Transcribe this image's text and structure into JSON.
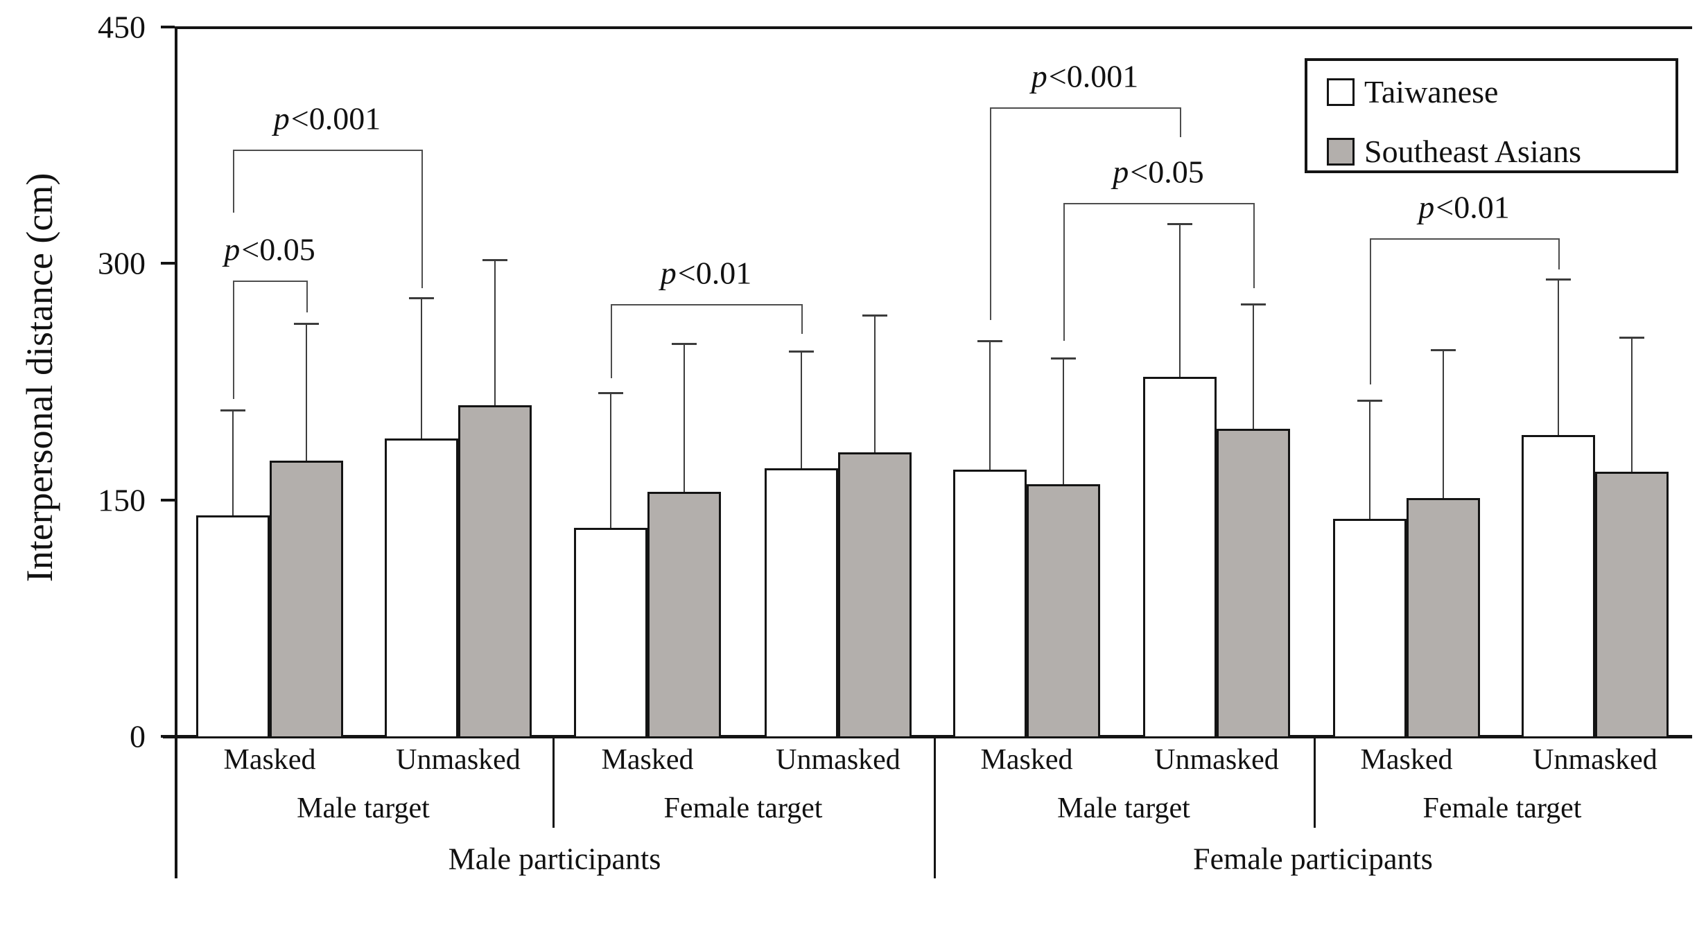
{
  "chart_data": {
    "type": "bar",
    "ylabel": "Interpersonal distance (cm)",
    "ylim": [
      0,
      450
    ],
    "y_ticks": [
      0,
      150,
      300,
      450
    ],
    "grid": "off",
    "legend_position": "top-right",
    "series": [
      {
        "name": "Taiwanese",
        "fill": "#ffffff"
      },
      {
        "name": "Southeast Asians",
        "fill": "#b3afac"
      }
    ],
    "participants": [
      {
        "label": "Male participants",
        "targets": [
          {
            "label": "Male target",
            "conditions": [
              {
                "label": "Masked",
                "values": [
                  {
                    "series": "Taiwanese",
                    "mean": 140,
                    "error_top": 207
                  },
                  {
                    "series": "Southeast Asians",
                    "mean": 175,
                    "error_top": 262
                  }
                ]
              },
              {
                "label": "Unmasked",
                "values": [
                  {
                    "series": "Taiwanese",
                    "mean": 189,
                    "error_top": 278
                  },
                  {
                    "series": "Southeast Asians",
                    "mean": 210,
                    "error_top": 302
                  }
                ]
              }
            ]
          },
          {
            "label": "Female target",
            "conditions": [
              {
                "label": "Masked",
                "values": [
                  {
                    "series": "Taiwanese",
                    "mean": 132,
                    "error_top": 218
                  },
                  {
                    "series": "Southeast Asians",
                    "mean": 155,
                    "error_top": 249
                  }
                ]
              },
              {
                "label": "Unmasked",
                "values": [
                  {
                    "series": "Taiwanese",
                    "mean": 170,
                    "error_top": 244
                  },
                  {
                    "series": "Southeast Asians",
                    "mean": 180,
                    "error_top": 267
                  }
                ]
              }
            ]
          }
        ]
      },
      {
        "label": "Female participants",
        "targets": [
          {
            "label": "Male target",
            "conditions": [
              {
                "label": "Masked",
                "values": [
                  {
                    "series": "Taiwanese",
                    "mean": 169,
                    "error_top": 251
                  },
                  {
                    "series": "Southeast Asians",
                    "mean": 160,
                    "error_top": 240
                  }
                ]
              },
              {
                "label": "Unmasked",
                "values": [
                  {
                    "series": "Taiwanese",
                    "mean": 228,
                    "error_top": 325
                  },
                  {
                    "series": "Southeast Asians",
                    "mean": 195,
                    "error_top": 274
                  }
                ]
              }
            ]
          },
          {
            "label": "Female target",
            "conditions": [
              {
                "label": "Masked",
                "values": [
                  {
                    "series": "Taiwanese",
                    "mean": 138,
                    "error_top": 213
                  },
                  {
                    "series": "Southeast Asians",
                    "mean": 151,
                    "error_top": 245
                  }
                ]
              },
              {
                "label": "Unmasked",
                "values": [
                  {
                    "series": "Taiwanese",
                    "mean": 191,
                    "error_top": 290
                  },
                  {
                    "series": "Southeast Asians",
                    "mean": 168,
                    "error_top": 253
                  }
                ]
              }
            ]
          }
        ]
      }
    ],
    "significance": [
      {
        "label": "p<0.05",
        "from_bar": 0,
        "to_bar": 1,
        "bar_y": 289,
        "from_leg_y": 214,
        "to_leg_y": 269
      },
      {
        "label": "p<0.001",
        "from_bar": 0,
        "to_bar": 2,
        "bar_y": 372,
        "from_leg_y": 332,
        "to_leg_y": 284
      },
      {
        "label": "p<0.01",
        "from_bar": 4,
        "to_bar": 6,
        "bar_y": 274,
        "from_leg_y": 227,
        "to_leg_y": 255
      },
      {
        "label": "p<0.001",
        "from_bar": 8,
        "to_bar": 10,
        "bar_y": 399,
        "from_leg_y": 264,
        "to_leg_y": 380
      },
      {
        "label": "p<0.05",
        "from_bar": 9,
        "to_bar": 11,
        "bar_y": 338,
        "from_leg_y": 251,
        "to_leg_y": 284
      },
      {
        "label": "p<0.01",
        "from_bar": 12,
        "to_bar": 14,
        "bar_y": 316,
        "from_leg_y": 223,
        "to_leg_y": 296
      }
    ]
  },
  "legend": {
    "items": [
      {
        "label": "Taiwanese"
      },
      {
        "label": "Southeast Asians"
      }
    ]
  }
}
